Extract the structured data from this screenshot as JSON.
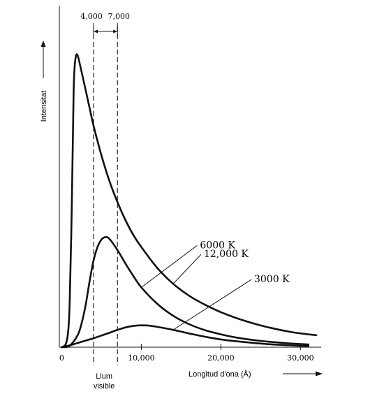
{
  "chart_data": {
    "type": "line",
    "title": "",
    "xlabel": "Longitud d'ona (Å)",
    "ylabel": "Intensitat",
    "xlim": [
      -300,
      32600
    ],
    "ylim": [
      0,
      1
    ],
    "x_ticks": [
      {
        "value": 0,
        "label": "0"
      },
      {
        "value": 10000,
        "label": "10,000"
      },
      {
        "value": 20000,
        "label": "20,000"
      },
      {
        "value": 30000,
        "label": "30,000"
      }
    ],
    "visible_band": {
      "start": 4000,
      "end": 7000,
      "start_label": "4,000",
      "end_label": "7,000",
      "label_line1": "Llum",
      "label_line2": "visible"
    },
    "series": [
      {
        "name": "12,000 K",
        "label_at": 14000,
        "x": [
          0,
          500,
          800,
          1000,
          1200,
          1400,
          1500,
          1600,
          1800,
          2000,
          2200,
          2500,
          3000,
          3500,
          4000,
          5000,
          6000,
          7000,
          8000,
          9000,
          10000,
          12000,
          14000,
          16000,
          18000,
          20000,
          23000,
          26000,
          29000,
          32000
        ],
        "values": [
          0,
          0.01,
          0.05,
          0.15,
          0.38,
          0.7,
          0.86,
          0.93,
          0.975,
          0.975,
          0.955,
          0.92,
          0.86,
          0.8,
          0.74,
          0.64,
          0.555,
          0.485,
          0.425,
          0.375,
          0.335,
          0.265,
          0.212,
          0.172,
          0.142,
          0.117,
          0.088,
          0.066,
          0.05,
          0.04
        ]
      },
      {
        "name": "6000 K",
        "label_at": 10000,
        "x": [
          0,
          1000,
          2000,
          2500,
          3000,
          3500,
          4000,
          4500,
          5000,
          5500,
          6000,
          7000,
          8000,
          9000,
          10000,
          12000,
          14000,
          16000,
          18000,
          20000,
          22000,
          25000,
          28000,
          31000
        ],
        "values": [
          0,
          0.005,
          0.04,
          0.08,
          0.14,
          0.22,
          0.29,
          0.335,
          0.36,
          0.368,
          0.362,
          0.325,
          0.28,
          0.238,
          0.2,
          0.145,
          0.105,
          0.077,
          0.057,
          0.043,
          0.032,
          0.021,
          0.014,
          0.009
        ]
      },
      {
        "name": "3000 K",
        "label_at": 14000,
        "x": [
          0,
          1000,
          2000,
          3000,
          4000,
          5000,
          6000,
          7000,
          8000,
          9000,
          10000,
          11000,
          12000,
          14000,
          16000,
          18000,
          20000,
          23000,
          26000,
          29000,
          31000
        ],
        "values": [
          0,
          0.006,
          0.014,
          0.022,
          0.03,
          0.039,
          0.048,
          0.058,
          0.066,
          0.071,
          0.073,
          0.072,
          0.068,
          0.058,
          0.046,
          0.035,
          0.026,
          0.017,
          0.01,
          0.006,
          0.004
        ]
      }
    ],
    "grid": false,
    "legend": "none"
  }
}
